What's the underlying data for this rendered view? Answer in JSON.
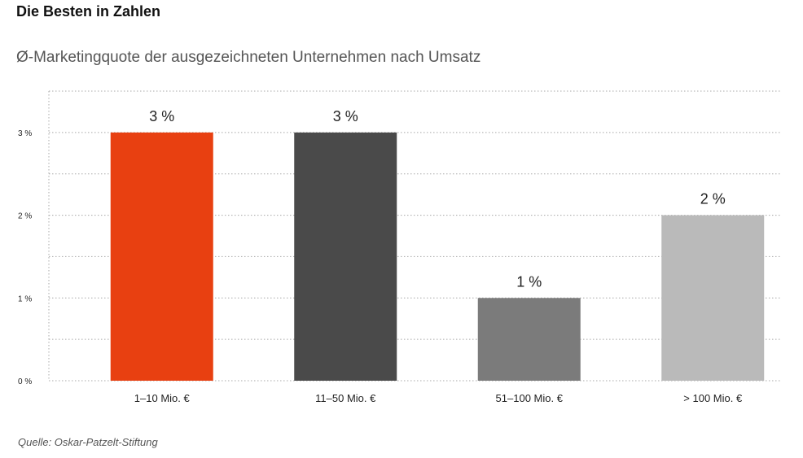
{
  "header": {
    "title": "Die Besten in Zahlen",
    "subtitle": "Ø-Marketingquote der ausgezeichneten Unternehmen nach Umsatz"
  },
  "footer": {
    "source": "Quelle: Oskar-Patzelt-Stiftung"
  },
  "chart_data": {
    "type": "bar",
    "categories": [
      "1–10 Mio. €",
      "11–50 Mio. €",
      "51–100 Mio. €",
      "> 100 Mio. €"
    ],
    "values": [
      3,
      3,
      1,
      2
    ],
    "value_labels": [
      "3 %",
      "3 %",
      "1 %",
      "2 %"
    ],
    "colors": [
      "#e84011",
      "#4a4a4a",
      "#7b7b7b",
      "#bababa"
    ],
    "title": "Ø-Marketingquote der ausgezeichneten Unternehmen nach Umsatz",
    "xlabel": "",
    "ylabel": "",
    "ylim": [
      0,
      3.5
    ],
    "yticks": [
      0,
      1,
      2,
      3
    ],
    "ytick_labels": [
      "0 %",
      "1 %",
      "2 %",
      "3 %"
    ],
    "grid": true,
    "legend": "none"
  }
}
